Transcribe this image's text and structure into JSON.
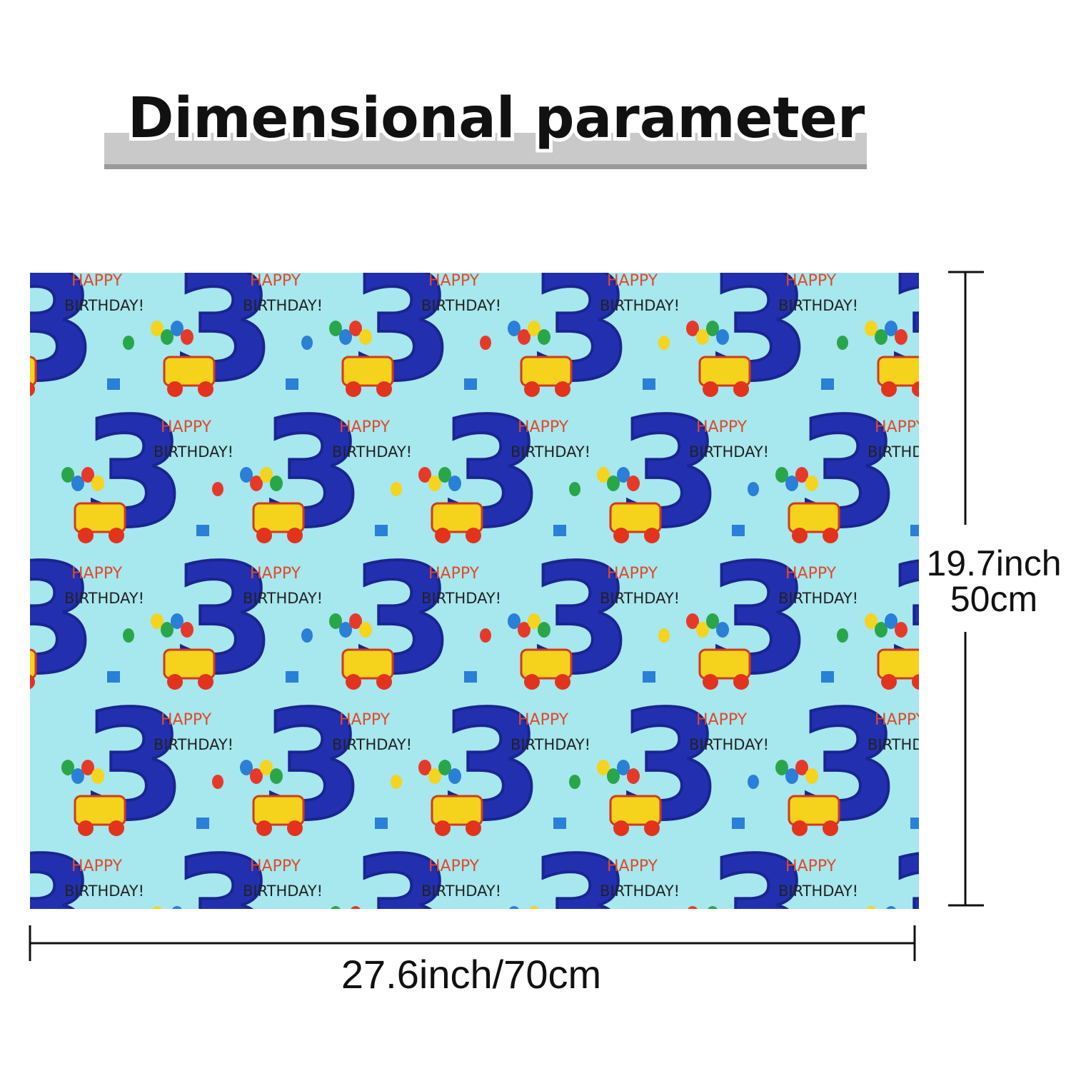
{
  "title": "Dimensional parameter",
  "pattern": {
    "number": "3",
    "line1": "HAPPY",
    "line2": "BIRTHDAY!"
  },
  "height": {
    "inch": "19.7inch",
    "cm": "50cm"
  },
  "width": "27.6inch/70cm"
}
